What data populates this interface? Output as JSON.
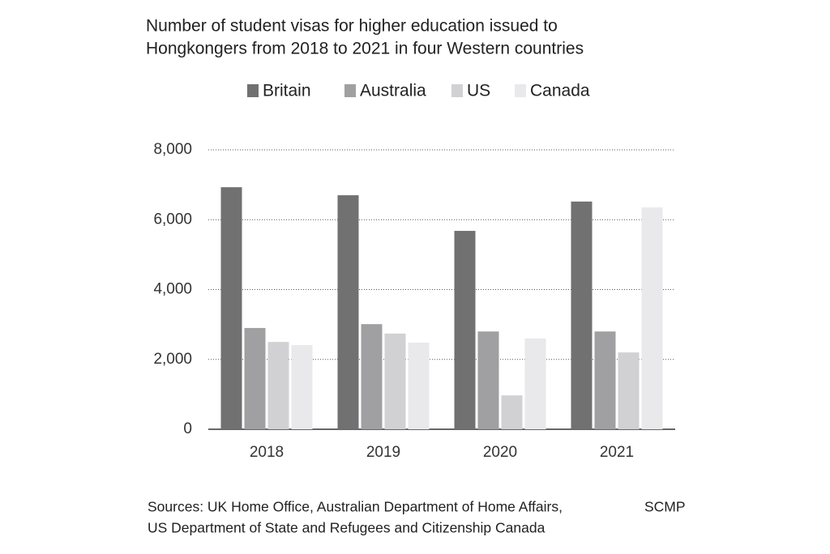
{
  "chart_data": {
    "type": "bar",
    "title": [
      "Number of student visas for higher education issued to",
      "Hongkongers from 2018 to 2021 in four Western countries"
    ],
    "categories": [
      "2018",
      "2019",
      "2020",
      "2021"
    ],
    "series": [
      {
        "name": "Britain",
        "color": "#717171",
        "values": [
          6930,
          6700,
          5680,
          6520
        ]
      },
      {
        "name": "Australia",
        "color": "#a0a0a2",
        "values": [
          2900,
          3010,
          2800,
          2800
        ]
      },
      {
        "name": "US",
        "color": "#d1d1d3",
        "values": [
          2500,
          2740,
          970,
          2200
        ]
      },
      {
        "name": "Canada",
        "color": "#e9e9eb",
        "values": [
          2410,
          2480,
          2600,
          6350
        ]
      }
    ],
    "ylim": [
      0,
      8000
    ],
    "yticks": [
      0,
      {
        "value": 2000,
        "label": "2,000"
      },
      {
        "value": 4000,
        "label": "4,000"
      },
      {
        "value": 6000,
        "label": "6,000"
      },
      {
        "value": 8000,
        "label": "8,000"
      }
    ],
    "grid": true,
    "legend_position": "top",
    "sources": [
      "Sources: UK Home Office, Australian Department of Home Affairs,",
      "US Department of State and Refugees and Citizenship Canada"
    ],
    "credit": "SCMP"
  }
}
